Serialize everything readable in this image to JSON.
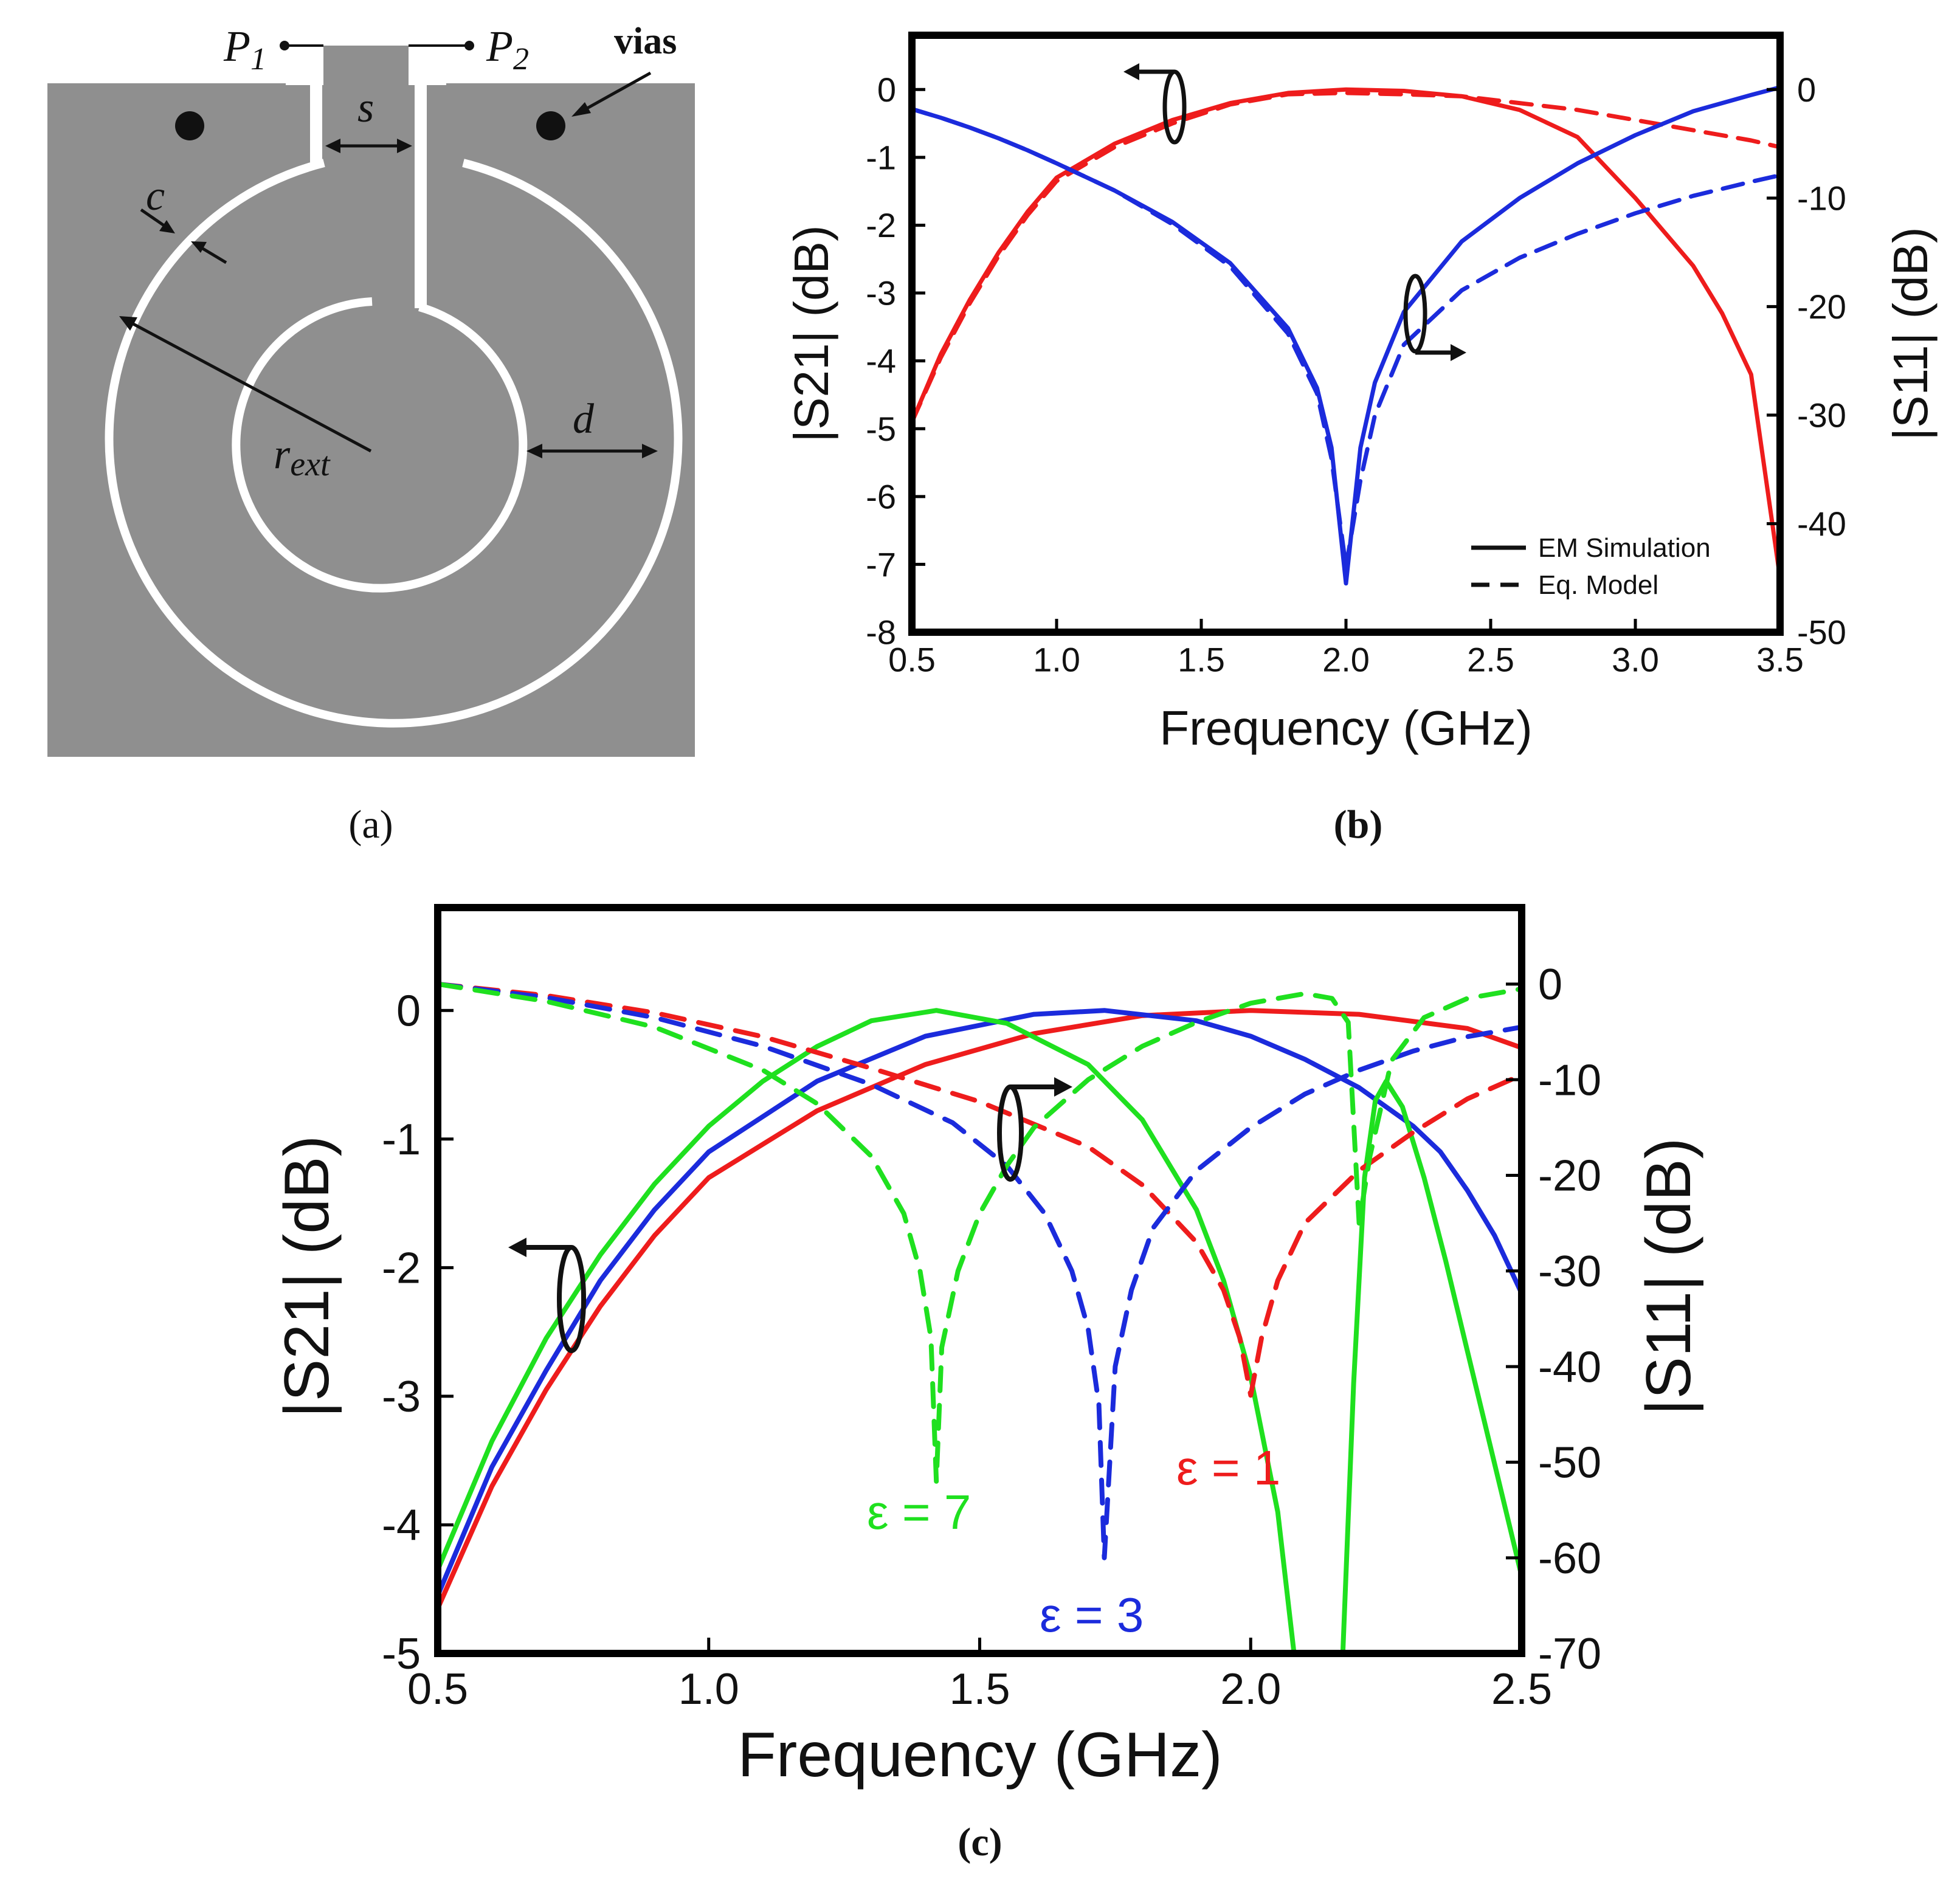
{
  "panels": {
    "a": {
      "caption": "(a)",
      "labels": {
        "p1": "P",
        "p1_sub": "1",
        "p2": "P",
        "p2_sub": "2",
        "vias": "vias",
        "s": "s",
        "c": "c",
        "d": "d",
        "r": "r",
        "r_sub": "ext"
      }
    },
    "b": {
      "caption": "(b)"
    },
    "c": {
      "caption": "(c)"
    }
  },
  "colors": {
    "red": "#ee1c1c",
    "blue": "#1b2bdc",
    "green": "#1fe01f",
    "substrate": "#8f8f8f",
    "slot": "#ffffff",
    "frame": "#000000"
  },
  "chart_data": [
    {
      "panel": "b",
      "type": "line",
      "xlabel": "Frequency (GHz)",
      "ylabel_left": "|S21| (dB)",
      "ylabel_right": "|S11| (dB)",
      "xlim": [
        0.5,
        3.5
      ],
      "ylim_left": [
        -8,
        0.8
      ],
      "ylim_right": [
        -50,
        5
      ],
      "x_ticks": [
        "0.5",
        "1.0",
        "1.5",
        "2.0",
        "2.5",
        "3.0",
        "3.5"
      ],
      "y_left_ticks": [
        "0",
        "-1",
        "-2",
        "-3",
        "-4",
        "-5",
        "-6",
        "-7",
        "-8"
      ],
      "y_right_ticks": [
        "0",
        "-10",
        "-20",
        "-30",
        "-40",
        "-50"
      ],
      "legend": {
        "placement": "bottom-right",
        "entries": [
          {
            "label": "EM Simulation",
            "style": "solid"
          },
          {
            "label": "Eq. Model",
            "style": "dashed"
          }
        ]
      },
      "series": [
        {
          "name": "|S21| EM Simulation",
          "axis": "left",
          "color": "red",
          "style": "solid",
          "x": [
            0.5,
            0.6,
            0.7,
            0.8,
            0.9,
            1.0,
            1.2,
            1.4,
            1.6,
            1.8,
            2.0,
            2.2,
            2.4,
            2.6,
            2.8,
            2.9,
            3.0,
            3.1,
            3.2,
            3.3,
            3.4,
            3.5
          ],
          "y": [
            -4.9,
            -3.9,
            -3.1,
            -2.4,
            -1.8,
            -1.3,
            -0.8,
            -0.45,
            -0.2,
            -0.05,
            0,
            -0.02,
            -0.1,
            -0.3,
            -0.7,
            -1.15,
            -1.6,
            -2.1,
            -2.6,
            -3.3,
            -4.2,
            -7.2
          ]
        },
        {
          "name": "|S21| Eq. Model",
          "axis": "left",
          "color": "red",
          "style": "dashed",
          "x": [
            0.5,
            0.6,
            0.7,
            0.8,
            0.9,
            1.0,
            1.2,
            1.4,
            1.6,
            1.8,
            2.0,
            2.2,
            2.4,
            2.6,
            2.8,
            3.0,
            3.2,
            3.4,
            3.5
          ],
          "y": [
            -4.9,
            -3.95,
            -3.15,
            -2.45,
            -1.85,
            -1.35,
            -0.85,
            -0.5,
            -0.22,
            -0.07,
            -0.05,
            -0.07,
            -0.1,
            -0.2,
            -0.3,
            -0.45,
            -0.6,
            -0.75,
            -0.85
          ]
        },
        {
          "name": "|S11| EM Simulation",
          "axis": "right",
          "color": "blue",
          "style": "solid",
          "x": [
            0.5,
            0.6,
            0.7,
            0.8,
            0.9,
            1.0,
            1.2,
            1.4,
            1.6,
            1.8,
            1.9,
            1.95,
            2.0,
            2.05,
            2.1,
            2.2,
            2.4,
            2.6,
            2.8,
            3.0,
            3.2,
            3.4,
            3.5
          ],
          "y": [
            -1.8,
            -2.6,
            -3.5,
            -4.5,
            -5.6,
            -6.8,
            -9.3,
            -12.2,
            -16,
            -22,
            -27.5,
            -33,
            -45.5,
            -33,
            -27,
            -20.5,
            -14,
            -10,
            -6.8,
            -4.2,
            -2,
            -0.5,
            0.2
          ]
        },
        {
          "name": "|S11| Eq. Model",
          "axis": "right",
          "color": "blue",
          "style": "dashed",
          "x": [
            0.5,
            0.6,
            0.7,
            0.8,
            0.9,
            1.0,
            1.2,
            1.4,
            1.6,
            1.8,
            1.9,
            1.95,
            2.0,
            2.05,
            2.1,
            2.2,
            2.4,
            2.6,
            2.8,
            3.0,
            3.2,
            3.4,
            3.5
          ],
          "y": [
            -1.8,
            -2.6,
            -3.5,
            -4.5,
            -5.6,
            -6.8,
            -9.3,
            -12.4,
            -16.3,
            -22.5,
            -28,
            -34,
            -44,
            -36,
            -30,
            -23.5,
            -18.5,
            -15.5,
            -13.3,
            -11.4,
            -9.8,
            -8.5,
            -7.9
          ]
        }
      ]
    },
    {
      "panel": "c",
      "type": "line",
      "xlabel": "Frequency (GHz)",
      "ylabel_left": "|S21| (dB)",
      "ylabel_right": "|S11| (dB)",
      "xlim": [
        0.5,
        2.5
      ],
      "ylim_left": [
        -5,
        0.8
      ],
      "ylim_right": [
        -70,
        8
      ],
      "x_ticks": [
        "0.5",
        "1.0",
        "1.5",
        "2.0",
        "2.5"
      ],
      "y_left_ticks": [
        "0",
        "-1",
        "-2",
        "-3",
        "-4",
        "-5"
      ],
      "y_right_ticks": [
        "0",
        "-10",
        "-20",
        "-30",
        "-40",
        "-50",
        "-60",
        "-70"
      ],
      "annotations": [
        {
          "text": "ε = 1",
          "color": "red"
        },
        {
          "text": "ε = 3",
          "color": "blue"
        },
        {
          "text": "ε = 7",
          "color": "green"
        }
      ],
      "series": [
        {
          "name": "|S21| ε = 1",
          "axis": "left",
          "color": "red",
          "style": "solid",
          "x": [
            0.5,
            0.6,
            0.7,
            0.8,
            0.9,
            1.0,
            1.2,
            1.4,
            1.6,
            1.8,
            2.0,
            2.2,
            2.4,
            2.5
          ],
          "y": [
            -4.65,
            -3.7,
            -2.95,
            -2.3,
            -1.75,
            -1.3,
            -0.78,
            -0.42,
            -0.18,
            -0.04,
            0,
            -0.03,
            -0.14,
            -0.29
          ]
        },
        {
          "name": "|S21| ε = 3",
          "axis": "left",
          "color": "blue",
          "style": "solid",
          "x": [
            0.5,
            0.6,
            0.7,
            0.8,
            0.9,
            1.0,
            1.2,
            1.4,
            1.6,
            1.73,
            1.9,
            2.0,
            2.1,
            2.2,
            2.3,
            2.35,
            2.4,
            2.45,
            2.5
          ],
          "y": [
            -4.55,
            -3.55,
            -2.8,
            -2.1,
            -1.55,
            -1.1,
            -0.55,
            -0.2,
            -0.03,
            0,
            -0.08,
            -0.2,
            -0.38,
            -0.6,
            -0.9,
            -1.1,
            -1.4,
            -1.75,
            -2.2
          ]
        },
        {
          "name": "|S21| ε = 7",
          "axis": "left",
          "color": "green",
          "style": "solid",
          "x": [
            0.5,
            0.6,
            0.7,
            0.8,
            0.9,
            1.0,
            1.1,
            1.2,
            1.3,
            1.42,
            1.55,
            1.7,
            1.8,
            1.9,
            1.95,
            2.0,
            2.05,
            2.08
          ],
          "y": [
            -4.35,
            -3.35,
            -2.55,
            -1.9,
            -1.35,
            -0.9,
            -0.55,
            -0.28,
            -0.08,
            0,
            -0.1,
            -0.42,
            -0.85,
            -1.55,
            -2.1,
            -2.85,
            -3.9,
            -5.0
          ]
        },
        {
          "name": "|S21| ε = 7 (upper band)",
          "axis": "left",
          "color": "green",
          "style": "solid",
          "x": [
            2.17,
            2.19,
            2.21,
            2.23,
            2.25,
            2.28,
            2.32,
            2.36,
            2.4,
            2.44,
            2.48,
            2.5
          ],
          "y": [
            -5.0,
            -2.9,
            -1.3,
            -0.7,
            -0.55,
            -0.75,
            -1.3,
            -1.95,
            -2.65,
            -3.35,
            -4.05,
            -4.4
          ]
        },
        {
          "name": "|S11| ε = 1",
          "axis": "right",
          "color": "red",
          "style": "dashed",
          "x": [
            0.5,
            0.7,
            0.9,
            1.1,
            1.3,
            1.5,
            1.7,
            1.8,
            1.9,
            1.95,
            1.98,
            2.0,
            2.02,
            2.05,
            2.1,
            2.2,
            2.3,
            2.4,
            2.5
          ],
          "y": [
            0,
            -1.2,
            -3,
            -5.5,
            -8.8,
            -12.3,
            -17,
            -21,
            -27,
            -32,
            -37,
            -43,
            -37,
            -31,
            -25,
            -19.5,
            -15.5,
            -12,
            -9.5
          ]
        },
        {
          "name": "|S11| ε = 3",
          "axis": "right",
          "color": "blue",
          "style": "dashed",
          "x": [
            0.5,
            0.7,
            0.9,
            1.1,
            1.3,
            1.45,
            1.55,
            1.62,
            1.67,
            1.7,
            1.72,
            1.73,
            1.75,
            1.78,
            1.82,
            1.9,
            2.0,
            2.1,
            2.2,
            2.3,
            2.4,
            2.5
          ],
          "y": [
            0,
            -1.4,
            -3.5,
            -6.5,
            -10.5,
            -14.5,
            -19,
            -24,
            -30,
            -36,
            -44,
            -60,
            -40,
            -32,
            -25.5,
            -19.5,
            -15,
            -11.5,
            -9,
            -7,
            -5.5,
            -4.5
          ]
        },
        {
          "name": "|S11| ε = 7",
          "axis": "right",
          "color": "green",
          "style": "dashed",
          "x": [
            0.5,
            0.7,
            0.9,
            1.1,
            1.2,
            1.3,
            1.36,
            1.39,
            1.41,
            1.42,
            1.43,
            1.46,
            1.5,
            1.55,
            1.6,
            1.7,
            1.8,
            1.9,
            2.0,
            2.1,
            2.15,
            2.18,
            2.2,
            2.22,
            2.26,
            2.32,
            2.4,
            2.5
          ],
          "y": [
            0,
            -1.8,
            -4.5,
            -9,
            -12.5,
            -18,
            -24,
            -30,
            -37,
            -52,
            -38,
            -30,
            -24,
            -19,
            -15,
            -10,
            -6.5,
            -4,
            -2,
            -1,
            -1.5,
            -4,
            -25,
            -18,
            -8,
            -3.5,
            -1.5,
            -0.5
          ]
        }
      ]
    }
  ]
}
